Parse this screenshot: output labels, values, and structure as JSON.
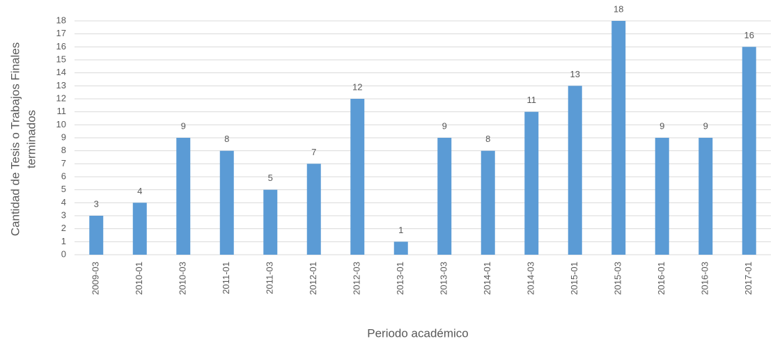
{
  "chart_data": {
    "type": "bar",
    "y_label": [
      "Cantidad de Tesis o Trabajos Finales",
      "terminados"
    ],
    "x_label": "Periodo académico",
    "categories": [
      "2009-03",
      "2010-01",
      "2010-03",
      "2011-01",
      "2011-03",
      "2012-01",
      "2012-03",
      "2013-01",
      "2013-03",
      "2014-01",
      "2014-03",
      "2015-01",
      "2015-03",
      "2016-01",
      "2016-03",
      "2017-01"
    ],
    "values": [
      3,
      4,
      9,
      8,
      5,
      7,
      12,
      1,
      9,
      8,
      11,
      13,
      18,
      9,
      9,
      16
    ],
    "color": "#5b9bd5",
    "ylim": [
      0,
      18
    ],
    "yticks": [
      0,
      1,
      2,
      3,
      4,
      5,
      6,
      7,
      8,
      9,
      10,
      11,
      12,
      13,
      14,
      15,
      16,
      17,
      18
    ],
    "grid": true
  }
}
